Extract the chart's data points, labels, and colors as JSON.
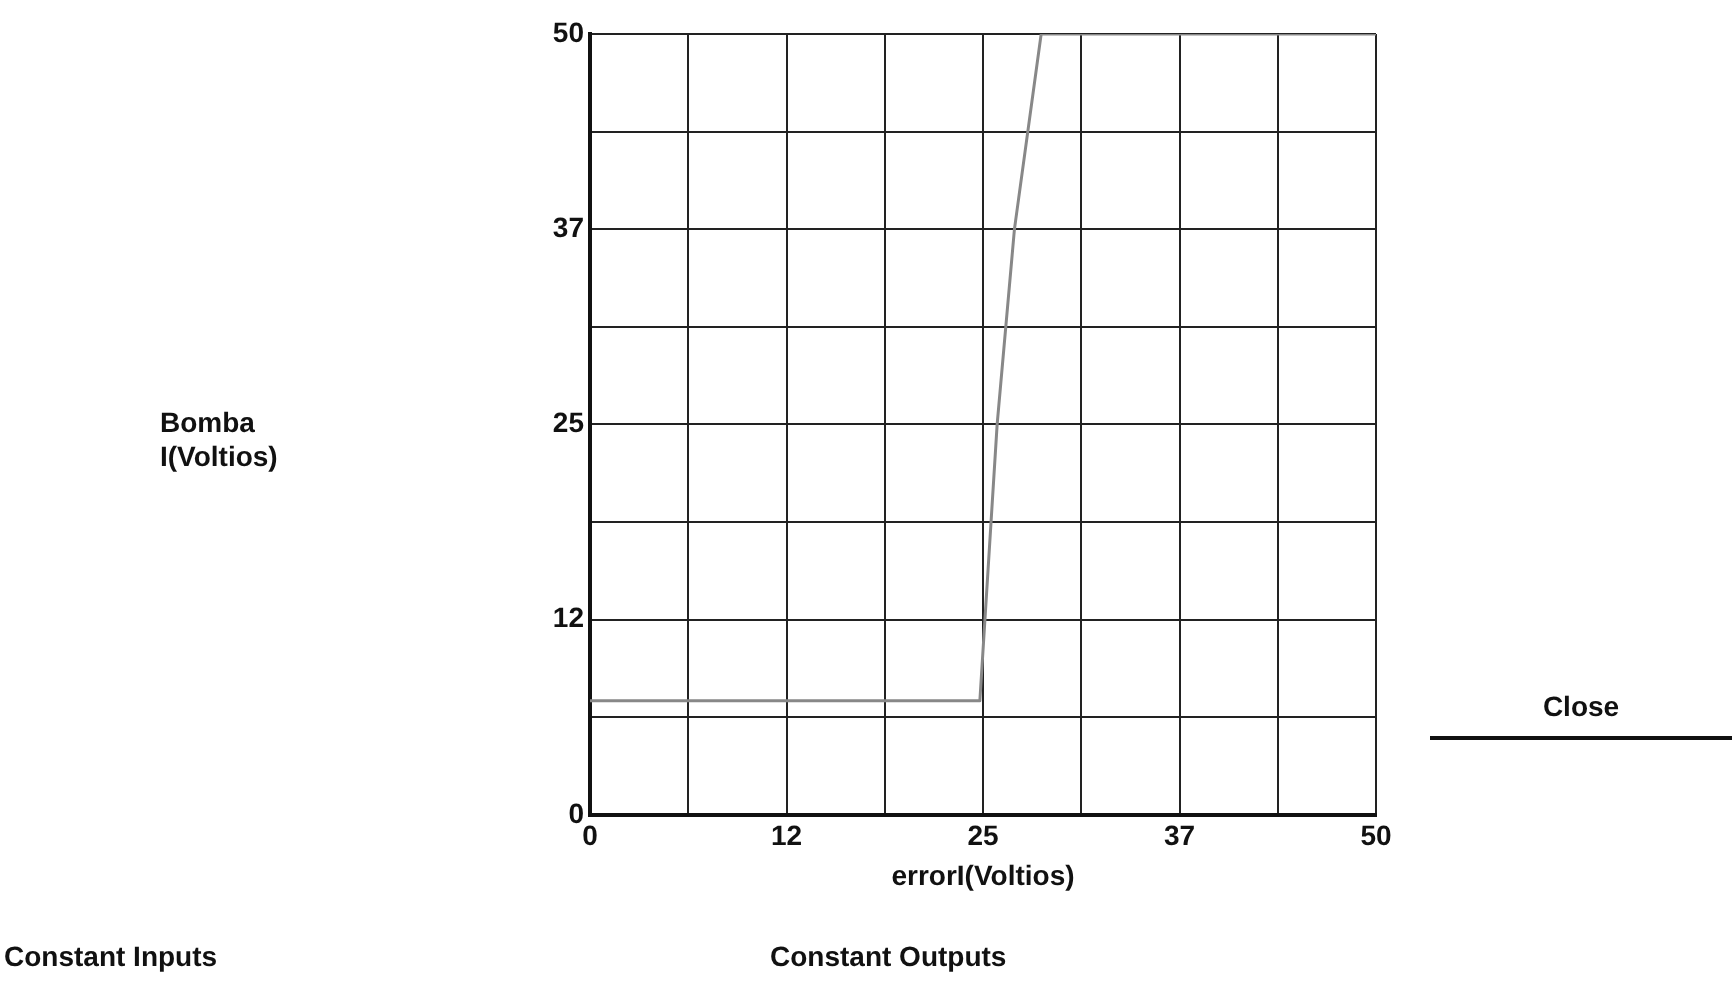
{
  "chart_data": {
    "type": "line",
    "xlabel": "errorI(Voltios)",
    "x": [
      0,
      24.8,
      25.9,
      27,
      28.7,
      50
    ],
    "series": [
      {
        "color": "#888888",
        "values": [
          7.3,
          7.3,
          25,
          37.5,
          50,
          50
        ]
      }
    ],
    "xlim": [
      0,
      50
    ],
    "ylim": [
      0,
      50
    ],
    "xticks": [
      0,
      {
        "value": 6.25,
        "label": null
      },
      {
        "value": 12.5,
        "label": "12"
      },
      {
        "value": 18.75,
        "label": null
      },
      25,
      {
        "value": 31.25,
        "label": null
      },
      {
        "value": 37.5,
        "label": "37"
      },
      {
        "value": 43.75,
        "label": null
      },
      50
    ],
    "yticks": [
      0,
      {
        "value": 6.25,
        "label": null
      },
      {
        "value": 12.5,
        "label": "12"
      },
      {
        "value": 18.75,
        "label": null
      },
      25,
      {
        "value": 31.25,
        "label": null
      },
      {
        "value": 37.5,
        "label": "37"
      },
      {
        "value": 43.75,
        "label": null
      },
      50
    ],
    "grid": true,
    "legend": false,
    "marker": "none",
    "line_style": "solid",
    "annotations": [
      "Bomba\nI(Voltios)",
      "Constant Inputs",
      "Constant Outputs",
      "Close"
    ]
  }
}
